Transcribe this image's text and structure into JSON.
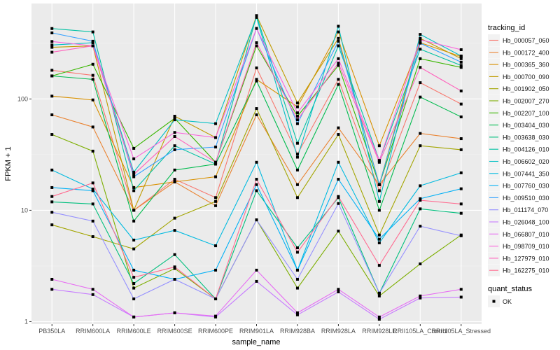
{
  "chart_data": {
    "type": "line",
    "xlabel": "sample_name",
    "ylabel": "FPKM + 1",
    "yscale": "log10",
    "ylim": [
      0.95,
      720
    ],
    "yticks": [
      {
        "value": 1,
        "label": "1"
      },
      {
        "value": 10,
        "label": "10"
      },
      {
        "value": 100,
        "label": "100"
      }
    ],
    "categories": [
      "PB350LA",
      "RRIM600LA",
      "RRIM600LE",
      "RRIM600SE",
      "RRIM600PE",
      "RRIM901LA",
      "RRIM928BA",
      "RRIM928LA",
      "RRIM928LE",
      "RRII105LA_Control",
      "RRII105LA_Stressed"
    ],
    "legend_title": "tracking_id",
    "legend_position": "right",
    "shape_legend": {
      "title": "quant_status",
      "entries": [
        "OK"
      ]
    },
    "series": [
      {
        "name": "Hb_000057_060",
        "color": "#F8766D",
        "values": [
          181,
          163,
          10,
          19,
          13,
          190,
          32,
          150,
          15,
          140,
          90
        ]
      },
      {
        "name": "Hb_000172_400",
        "color": "#EA8331",
        "values": [
          72,
          56,
          10,
          18,
          11,
          72,
          17,
          55,
          17,
          49,
          44
        ]
      },
      {
        "name": "Hb_000365_360",
        "color": "#D89000",
        "values": [
          106,
          98,
          16,
          18,
          20,
          150,
          85,
          400,
          38,
          320,
          240
        ]
      },
      {
        "name": "Hb_000700_090",
        "color": "#C09B00",
        "values": [
          291,
          300,
          10,
          70,
          45,
          560,
          92,
          350,
          17,
          350,
          230
        ]
      },
      {
        "name": "Hb_001902_050",
        "color": "#A3A500",
        "values": [
          7.4,
          5.8,
          4.5,
          8.5,
          12,
          82,
          13,
          48,
          6,
          38,
          35
        ]
      },
      {
        "name": "Hb_002007_270",
        "color": "#7CAE00",
        "values": [
          48,
          34,
          2.0,
          3.0,
          1.6,
          8.2,
          2.0,
          6.5,
          1.7,
          3.3,
          6.0
        ]
      },
      {
        "name": "Hb_002207_100",
        "color": "#39B600",
        "values": [
          161,
          205,
          36,
          67,
          27,
          300,
          70,
          200,
          17,
          230,
          192
        ]
      },
      {
        "name": "Hb_003404_030",
        "color": "#00BB4E",
        "values": [
          161,
          150,
          8,
          23,
          26,
          145,
          23,
          135,
          10,
          104,
          69
        ]
      },
      {
        "name": "Hb_003638_030",
        "color": "#00BF7D",
        "values": [
          11.9,
          11.4,
          2.2,
          4.0,
          1.6,
          15,
          4.6,
          13,
          1.8,
          10.3,
          9.4
        ]
      },
      {
        "name": "Hb_004126_010",
        "color": "#00C1A3",
        "values": [
          429,
          400,
          15,
          38,
          26,
          560,
          40,
          300,
          28,
          280,
          200
        ]
      },
      {
        "name": "Hb_006602_020",
        "color": "#00BFC4",
        "values": [
          305,
          320,
          22,
          65,
          60,
          540,
          30,
          450,
          12,
          380,
          243
        ]
      },
      {
        "name": "Hb_007441_350",
        "color": "#00BAE0",
        "values": [
          23,
          15.5,
          5.4,
          6.6,
          4.8,
          27,
          2.9,
          27,
          5.1,
          16.6,
          21.7
        ]
      },
      {
        "name": "Hb_007760_030",
        "color": "#00B0F6",
        "values": [
          16,
          15,
          2.9,
          2.4,
          2.9,
          17,
          2.9,
          19,
          5.5,
          12.7,
          15.6
        ]
      },
      {
        "name": "Hb_009510_030",
        "color": "#35A2FF",
        "values": [
          392,
          330,
          20,
          35,
          37,
          430,
          60,
          330,
          17,
          317,
          214
        ]
      },
      {
        "name": "Hb_011174_070",
        "color": "#9590FF",
        "values": [
          9.6,
          8,
          1.6,
          2.4,
          1.6,
          8.2,
          2.4,
          11.5,
          1.8,
          7.2,
          5.9
        ]
      },
      {
        "name": "Hb_026048_100",
        "color": "#C77CFF",
        "values": [
          1.95,
          1.75,
          1.1,
          1.2,
          1.1,
          2.3,
          1.15,
          1.85,
          1.05,
          1.63,
          1.66
        ]
      },
      {
        "name": "Hb_066807_010",
        "color": "#E76BF3",
        "values": [
          2.4,
          1.95,
          1.1,
          1.2,
          1.12,
          2.9,
          1.2,
          1.95,
          1.1,
          1.7,
          1.95
        ]
      },
      {
        "name": "Hb_098709_010",
        "color": "#FA62DB",
        "values": [
          328,
          300,
          29,
          50,
          45,
          430,
          75,
          230,
          28,
          340,
          277
        ]
      },
      {
        "name": "Hb_127979_010",
        "color": "#FF62BC",
        "values": [
          263,
          300,
          21,
          46,
          27,
          320,
          65,
          210,
          27,
          192,
          118
        ]
      },
      {
        "name": "Hb_162275_010",
        "color": "#FF6C91",
        "values": [
          13.3,
          17.6,
          2.5,
          3.1,
          1.6,
          19,
          4.2,
          13.3,
          3.2,
          12.3,
          11.4
        ]
      }
    ]
  }
}
